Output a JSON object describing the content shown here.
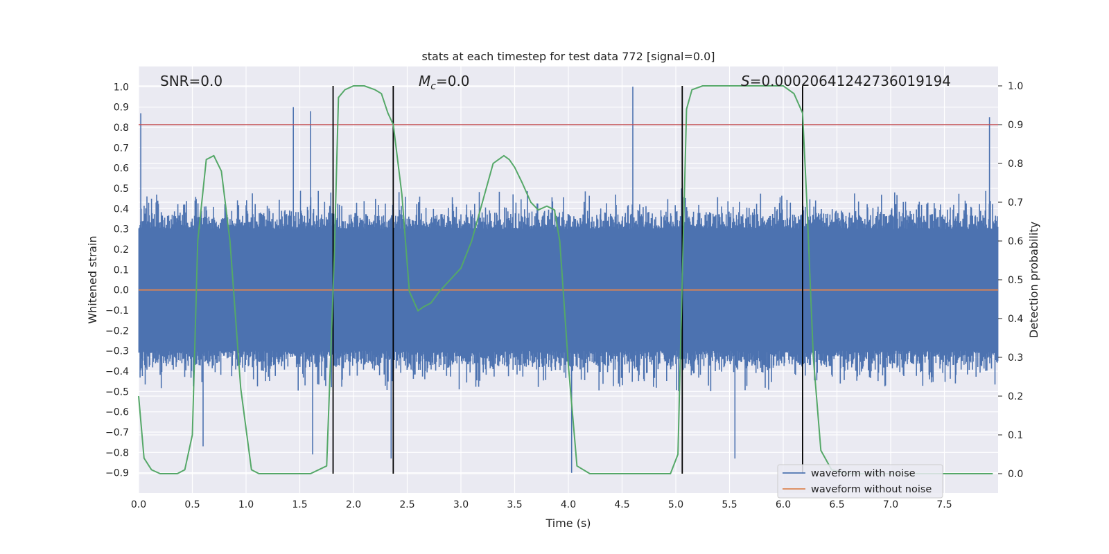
{
  "chart_data": {
    "type": "line",
    "title": "stats at each timestep for test data 772 [signal=0.0]",
    "xlabel": "Time (s)",
    "ylabel_left": "Whitened strain",
    "ylabel_right": "Detection probability",
    "xlim": [
      0,
      8
    ],
    "ylim_left": [
      -1.0,
      1.1
    ],
    "ylim_right": [
      -0.05,
      1.05
    ],
    "x_ticks": [
      0.0,
      0.5,
      1.0,
      1.5,
      2.0,
      2.5,
      3.0,
      3.5,
      4.0,
      4.5,
      5.0,
      5.5,
      6.0,
      6.5,
      7.0,
      7.5
    ],
    "x_tick_labels": [
      "0.0",
      "0.5",
      "1.0",
      "1.5",
      "2.0",
      "2.5",
      "3.0",
      "3.5",
      "4.0",
      "4.5",
      "5.0",
      "5.5",
      "6.0",
      "6.5",
      "7.0",
      "7.5"
    ],
    "y_left_ticks": [
      -0.9,
      -0.8,
      -0.7,
      -0.6,
      -0.5,
      -0.4,
      -0.3,
      -0.2,
      -0.1,
      0.0,
      0.1,
      0.2,
      0.3,
      0.4,
      0.5,
      0.6,
      0.7,
      0.8,
      0.9,
      1.0
    ],
    "y_left_tick_labels": [
      "−0.9",
      "−0.8",
      "−0.7",
      "−0.6",
      "−0.5",
      "−0.4",
      "−0.3",
      "−0.2",
      "−0.1",
      "0.0",
      "0.1",
      "0.2",
      "0.3",
      "0.4",
      "0.5",
      "0.6",
      "0.7",
      "0.8",
      "0.9",
      "1.0"
    ],
    "y_right_ticks": [
      0.0,
      0.1,
      0.2,
      0.3,
      0.4,
      0.5,
      0.6,
      0.7,
      0.8,
      0.9,
      1.0
    ],
    "y_right_tick_labels": [
      "0.0",
      "0.1",
      "0.2",
      "0.3",
      "0.4",
      "0.5",
      "0.6",
      "0.7",
      "0.8",
      "0.9",
      "1.0"
    ],
    "annotations": {
      "snr": "SNR=0.0",
      "mc_symbol": "M",
      "mc_sub": "c",
      "mc_value": "=0.0",
      "s_symbol": "S",
      "s_value": "=0.00020641242736019194"
    },
    "series": [
      {
        "name": "waveform with noise",
        "color": "#4c72b0",
        "axis": "left",
        "description": "dense whitened noise, typical envelope about ±0.3 with spikes up to about ±0.9",
        "envelope": [
          -0.3,
          0.3
        ],
        "peaks": [
          {
            "x": 0.02,
            "y": 0.87
          },
          {
            "x": 1.44,
            "y": 0.9
          },
          {
            "x": 1.6,
            "y": 0.88
          },
          {
            "x": 4.6,
            "y": 1.0
          },
          {
            "x": 7.92,
            "y": 0.85
          },
          {
            "x": 0.6,
            "y": -0.77
          },
          {
            "x": 1.62,
            "y": -0.81
          },
          {
            "x": 2.35,
            "y": -0.83
          },
          {
            "x": 4.03,
            "y": -0.9
          },
          {
            "x": 5.55,
            "y": -0.83
          }
        ]
      },
      {
        "name": "waveform without noise",
        "color": "#dd8452",
        "axis": "left",
        "x": [
          0,
          8
        ],
        "y": [
          0.0,
          0.0
        ]
      },
      {
        "name": "detection probability",
        "color": "#55a868",
        "axis": "right",
        "x": [
          0.0,
          0.05,
          0.12,
          0.2,
          0.28,
          0.36,
          0.43,
          0.5,
          0.55,
          0.63,
          0.7,
          0.77,
          0.85,
          0.95,
          1.05,
          1.12,
          1.25,
          1.45,
          1.6,
          1.75,
          1.82,
          1.86,
          1.92,
          2.0,
          2.1,
          2.2,
          2.26,
          2.32,
          2.37,
          2.45,
          2.52,
          2.6,
          2.65,
          2.72,
          2.8,
          2.9,
          3.0,
          3.1,
          3.2,
          3.3,
          3.4,
          3.45,
          3.5,
          3.57,
          3.65,
          3.72,
          3.8,
          3.87,
          3.92,
          4.0,
          4.08,
          4.2,
          4.5,
          4.8,
          4.95,
          5.02,
          5.06,
          5.1,
          5.15,
          5.25,
          5.4,
          5.7,
          6.0,
          6.1,
          6.18,
          6.22,
          6.28,
          6.35,
          6.45,
          6.6,
          7.0,
          7.5,
          7.95
        ],
        "y": [
          0.2,
          0.04,
          0.01,
          0.0,
          0.0,
          0.0,
          0.01,
          0.1,
          0.6,
          0.81,
          0.82,
          0.78,
          0.6,
          0.22,
          0.01,
          0.0,
          0.0,
          0.0,
          0.0,
          0.02,
          0.55,
          0.97,
          0.99,
          1.0,
          1.0,
          0.99,
          0.98,
          0.93,
          0.9,
          0.72,
          0.47,
          0.42,
          0.43,
          0.44,
          0.47,
          0.5,
          0.53,
          0.6,
          0.7,
          0.8,
          0.82,
          0.81,
          0.79,
          0.75,
          0.7,
          0.68,
          0.69,
          0.68,
          0.6,
          0.28,
          0.02,
          0.0,
          0.0,
          0.0,
          0.0,
          0.05,
          0.5,
          0.94,
          0.99,
          1.0,
          1.0,
          1.0,
          1.0,
          0.98,
          0.93,
          0.7,
          0.3,
          0.06,
          0.01,
          0.0,
          0.0,
          0.0,
          0.0
        ]
      }
    ],
    "hlines": [
      {
        "name": "threshold",
        "color": "#c44e52",
        "axis": "right",
        "y": 0.9
      }
    ],
    "vlines": {
      "color": "#000000",
      "x": [
        1.81,
        2.37,
        5.06,
        6.18
      ],
      "ymin_right": 0.0,
      "ymax_right": 1.0
    },
    "legend": {
      "position": "lower-right",
      "entries": [
        {
          "label": "waveform with noise",
          "color": "#4c72b0"
        },
        {
          "label": "waveform without noise",
          "color": "#dd8452"
        }
      ]
    },
    "grid": true
  }
}
